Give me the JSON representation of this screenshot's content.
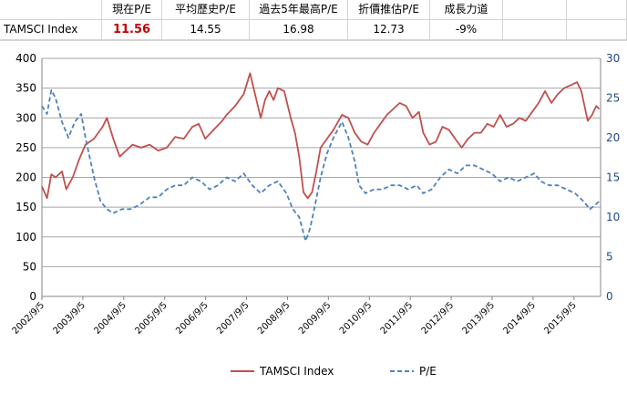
{
  "table": {
    "headers": [
      "",
      "現在P/E",
      "平均歷史P/E",
      "過去5年最高P/E",
      "折價推估P/E",
      "成長力道"
    ],
    "row_label": "TAMSCI Index",
    "values": [
      "11.56",
      "14.55",
      "16.98",
      "12.73",
      "-9%"
    ],
    "highlight_color": "#c00000"
  },
  "chart_data": {
    "type": "line",
    "x_ticks": [
      "2002/9/5",
      "2003/9/5",
      "2004/9/5",
      "2005/9/5",
      "2006/9/5",
      "2007/9/5",
      "2008/9/5",
      "2009/9/5",
      "2010/9/5",
      "2011/9/5",
      "2012/9/5",
      "2013/9/5",
      "2014/9/5",
      "2015/9/5"
    ],
    "y_left": {
      "range": [
        0,
        400
      ],
      "ticks": [
        "0",
        "50",
        "100",
        "150",
        "200",
        "250",
        "300",
        "350",
        "400"
      ]
    },
    "y_right": {
      "range": [
        0,
        30
      ],
      "ticks": [
        "0",
        "5",
        "10",
        "15",
        "20",
        "25",
        "30"
      ]
    },
    "grid": true,
    "legend_position": "bottom",
    "series": [
      {
        "name": "TAMSCI Index",
        "axis": "left",
        "color": "#c0504d",
        "dash": "solid",
        "points": [
          [
            2002.68,
            185
          ],
          [
            2002.8,
            165
          ],
          [
            2002.9,
            205
          ],
          [
            2003.0,
            200
          ],
          [
            2003.15,
            210
          ],
          [
            2003.25,
            180
          ],
          [
            2003.4,
            200
          ],
          [
            2003.55,
            230
          ],
          [
            2003.7,
            255
          ],
          [
            2003.9,
            265
          ],
          [
            2004.1,
            285
          ],
          [
            2004.2,
            300
          ],
          [
            2004.35,
            265
          ],
          [
            2004.5,
            235
          ],
          [
            2004.65,
            245
          ],
          [
            2004.8,
            255
          ],
          [
            2005.0,
            250
          ],
          [
            2005.2,
            255
          ],
          [
            2005.4,
            245
          ],
          [
            2005.6,
            250
          ],
          [
            2005.8,
            268
          ],
          [
            2006.0,
            265
          ],
          [
            2006.2,
            285
          ],
          [
            2006.35,
            290
          ],
          [
            2006.5,
            265
          ],
          [
            2006.7,
            280
          ],
          [
            2006.9,
            295
          ],
          [
            2007.0,
            305
          ],
          [
            2007.2,
            320
          ],
          [
            2007.4,
            340
          ],
          [
            2007.55,
            375
          ],
          [
            2007.7,
            330
          ],
          [
            2007.8,
            300
          ],
          [
            2007.9,
            330
          ],
          [
            2008.0,
            345
          ],
          [
            2008.1,
            330
          ],
          [
            2008.2,
            350
          ],
          [
            2008.35,
            345
          ],
          [
            2008.5,
            300
          ],
          [
            2008.6,
            275
          ],
          [
            2008.7,
            235
          ],
          [
            2008.8,
            175
          ],
          [
            2008.9,
            165
          ],
          [
            2009.0,
            175
          ],
          [
            2009.1,
            210
          ],
          [
            2009.2,
            250
          ],
          [
            2009.35,
            265
          ],
          [
            2009.5,
            280
          ],
          [
            2009.7,
            305
          ],
          [
            2009.85,
            300
          ],
          [
            2010.0,
            275
          ],
          [
            2010.15,
            260
          ],
          [
            2010.3,
            255
          ],
          [
            2010.45,
            275
          ],
          [
            2010.6,
            290
          ],
          [
            2010.75,
            305
          ],
          [
            2010.9,
            315
          ],
          [
            2011.05,
            325
          ],
          [
            2011.2,
            320
          ],
          [
            2011.35,
            300
          ],
          [
            2011.5,
            310
          ],
          [
            2011.6,
            275
          ],
          [
            2011.75,
            255
          ],
          [
            2011.9,
            260
          ],
          [
            2012.05,
            285
          ],
          [
            2012.2,
            280
          ],
          [
            2012.35,
            265
          ],
          [
            2012.5,
            250
          ],
          [
            2012.65,
            265
          ],
          [
            2012.8,
            275
          ],
          [
            2012.95,
            275
          ],
          [
            2013.1,
            290
          ],
          [
            2013.25,
            285
          ],
          [
            2013.4,
            305
          ],
          [
            2013.55,
            285
          ],
          [
            2013.7,
            290
          ],
          [
            2013.85,
            300
          ],
          [
            2014.0,
            295
          ],
          [
            2014.15,
            310
          ],
          [
            2014.3,
            325
          ],
          [
            2014.45,
            345
          ],
          [
            2014.6,
            325
          ],
          [
            2014.75,
            340
          ],
          [
            2014.9,
            350
          ],
          [
            2015.05,
            355
          ],
          [
            2015.2,
            360
          ],
          [
            2015.3,
            345
          ],
          [
            2015.45,
            295
          ],
          [
            2015.55,
            305
          ],
          [
            2015.65,
            320
          ],
          [
            2015.72,
            315
          ]
        ]
      },
      {
        "name": "P/E",
        "axis": "right",
        "color": "#4f81bd",
        "dash": "dashed",
        "points": [
          [
            2002.68,
            24
          ],
          [
            2002.8,
            23
          ],
          [
            2002.9,
            26
          ],
          [
            2003.0,
            25
          ],
          [
            2003.15,
            22
          ],
          [
            2003.3,
            20
          ],
          [
            2003.45,
            22
          ],
          [
            2003.6,
            23
          ],
          [
            2003.7,
            20
          ],
          [
            2003.9,
            15
          ],
          [
            2004.05,
            12
          ],
          [
            2004.2,
            11
          ],
          [
            2004.35,
            10.5
          ],
          [
            2004.55,
            11
          ],
          [
            2004.75,
            11
          ],
          [
            2004.95,
            11.5
          ],
          [
            2005.2,
            12.5
          ],
          [
            2005.4,
            12.5
          ],
          [
            2005.6,
            13.5
          ],
          [
            2005.8,
            14
          ],
          [
            2006.0,
            14
          ],
          [
            2006.2,
            15
          ],
          [
            2006.4,
            14.5
          ],
          [
            2006.6,
            13.5
          ],
          [
            2006.8,
            14
          ],
          [
            2007.0,
            15
          ],
          [
            2007.2,
            14.5
          ],
          [
            2007.4,
            15.5
          ],
          [
            2007.6,
            14
          ],
          [
            2007.8,
            13
          ],
          [
            2008.0,
            14
          ],
          [
            2008.2,
            14.5
          ],
          [
            2008.4,
            13
          ],
          [
            2008.55,
            11
          ],
          [
            2008.7,
            10
          ],
          [
            2008.8,
            8
          ],
          [
            2008.85,
            7
          ],
          [
            2008.95,
            8.5
          ],
          [
            2009.05,
            11
          ],
          [
            2009.2,
            15
          ],
          [
            2009.35,
            18
          ],
          [
            2009.5,
            20
          ],
          [
            2009.7,
            22
          ],
          [
            2009.85,
            20
          ],
          [
            2010.0,
            17
          ],
          [
            2010.1,
            14
          ],
          [
            2010.25,
            13
          ],
          [
            2010.45,
            13.5
          ],
          [
            2010.65,
            13.5
          ],
          [
            2010.85,
            14
          ],
          [
            2011.05,
            14
          ],
          [
            2011.25,
            13.5
          ],
          [
            2011.45,
            14
          ],
          [
            2011.6,
            13
          ],
          [
            2011.8,
            13.5
          ],
          [
            2012.0,
            15
          ],
          [
            2012.2,
            16
          ],
          [
            2012.4,
            15.5
          ],
          [
            2012.6,
            16.5
          ],
          [
            2012.8,
            16.5
          ],
          [
            2013.0,
            16
          ],
          [
            2013.2,
            15.5
          ],
          [
            2013.4,
            14.5
          ],
          [
            2013.6,
            15
          ],
          [
            2013.8,
            14.5
          ],
          [
            2014.0,
            15
          ],
          [
            2014.2,
            15.5
          ],
          [
            2014.35,
            14.5
          ],
          [
            2014.55,
            14
          ],
          [
            2014.75,
            14
          ],
          [
            2014.95,
            13.5
          ],
          [
            2015.15,
            13
          ],
          [
            2015.35,
            12
          ],
          [
            2015.5,
            11
          ],
          [
            2015.62,
            11.5
          ],
          [
            2015.72,
            12
          ]
        ]
      }
    ]
  }
}
